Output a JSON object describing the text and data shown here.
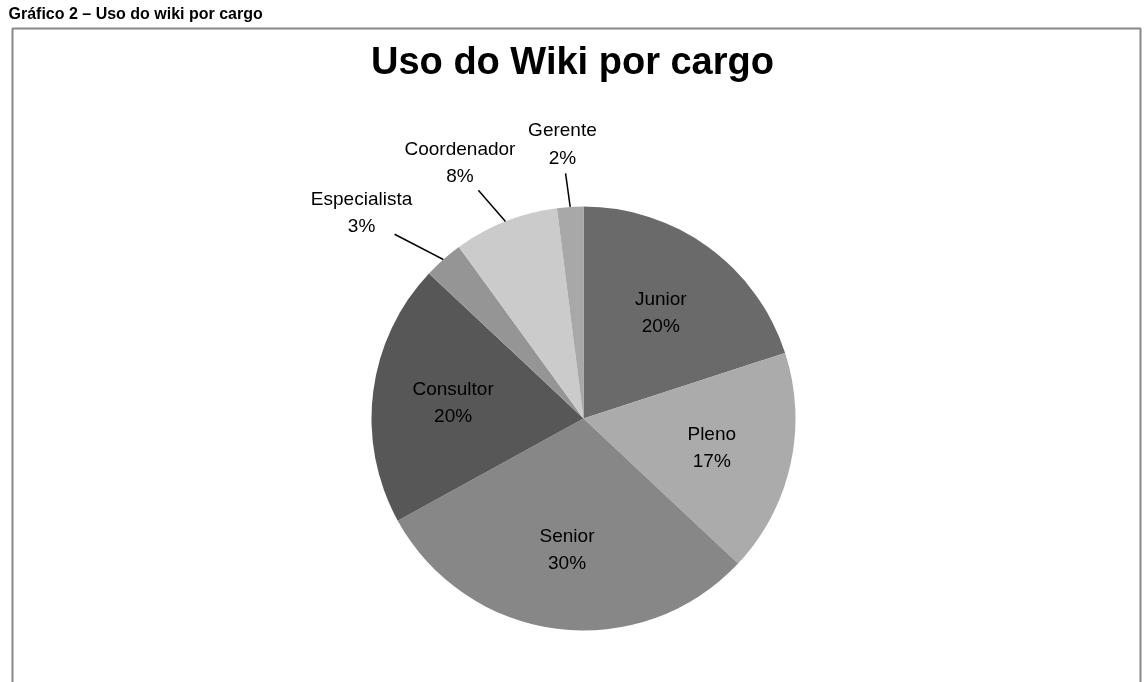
{
  "chart_data": {
    "type": "pie",
    "title": "Uso do Wiki por cargo",
    "annotations": [
      "Gráfico 2 – Uso do wiki por cargo"
    ],
    "categories": [
      "Junior",
      "Pleno",
      "Senior",
      "Consultor",
      "Especialista",
      "Coordenador",
      "Gerente"
    ],
    "values": [
      20,
      17,
      30,
      20,
      3,
      8,
      2
    ],
    "value_labels": [
      "20%",
      "17%",
      "30%",
      "20%",
      "3%",
      "8%",
      "2%"
    ],
    "colors": [
      "#6a6a6a",
      "#ababab",
      "#878787",
      "#575757",
      "#959595",
      "#cbcbcb",
      "#a8a8a8"
    ],
    "legend": false
  }
}
